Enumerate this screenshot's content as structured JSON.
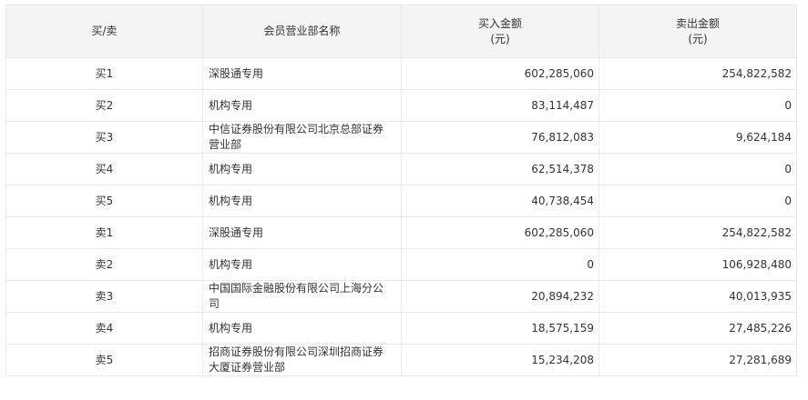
{
  "table": {
    "columns": [
      [
        "买/卖"
      ],
      [
        "会员营业部名称"
      ],
      [
        "买入金额",
        "(元)"
      ],
      [
        "卖出金额",
        "(元)"
      ]
    ],
    "rows": [
      [
        "买1",
        "深股通专用",
        "602,285,060",
        "254,822,582"
      ],
      [
        "买2",
        "机构专用",
        "83,114,487",
        "0"
      ],
      [
        "买3",
        "中信证券股份有限公司北京总部证券营业部",
        "76,812,083",
        "9,624,184"
      ],
      [
        "买4",
        "机构专用",
        "62,514,378",
        "0"
      ],
      [
        "买5",
        "机构专用",
        "40,738,454",
        "0"
      ],
      [
        "卖1",
        "深股通专用",
        "602,285,060",
        "254,822,582"
      ],
      [
        "卖2",
        "机构专用",
        "0",
        "106,928,480"
      ],
      [
        "卖3",
        "中国国际金融股份有限公司上海分公司",
        "20,894,232",
        "40,013,935"
      ],
      [
        "卖4",
        "机构专用",
        "18,575,159",
        "27,485,226"
      ],
      [
        "卖5",
        "招商证券股份有限公司深圳招商证券大厦证券营业部",
        "15,234,208",
        "27,281,689"
      ]
    ]
  }
}
